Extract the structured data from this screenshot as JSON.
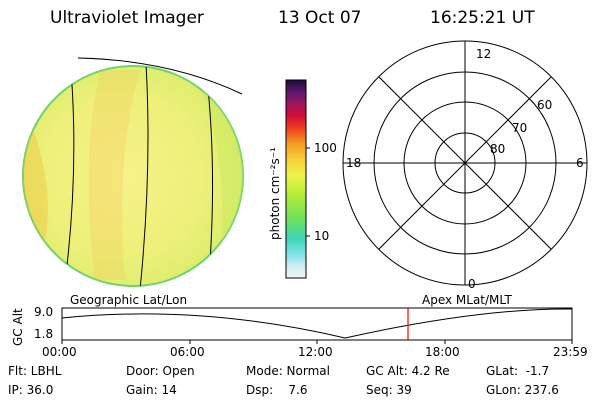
{
  "header": {
    "title": "Ultraviolet Imager",
    "date": "13 Oct 07",
    "time": "16:25:21 UT"
  },
  "colorbar": {
    "unit_label": "photon cm⁻²s⁻¹",
    "tick_100": "100",
    "tick_10": "10"
  },
  "polar": {
    "mlt_labels": {
      "top": "12",
      "left": "18",
      "right": "6",
      "bottom": "0"
    },
    "lat_labels": [
      "60",
      "70",
      "80"
    ]
  },
  "timeline": {
    "left_label": "Geographic Lat/Lon",
    "right_label": "Apex MLat/MLT",
    "axis_label": "GC Alt",
    "y_top": "9.0",
    "y_bottom": "1.8",
    "x_ticks": [
      "00:00",
      "06:00",
      "12:00",
      "18:00",
      "23:59"
    ],
    "marker_color": "#ff0000"
  },
  "info": {
    "filter": "Flt: LBHL",
    "door": "Door: Open",
    "mode": "Mode: Normal",
    "gc_alt": "GC Alt: 4.2 Re",
    "glat": "GLat:  -1.7",
    "ip": "IP: 36.0",
    "gain": "Gain: 14",
    "dsp": "Dsp:    7.6",
    "seq": "Seq: 39",
    "glon": "GLon: 237.6"
  }
}
